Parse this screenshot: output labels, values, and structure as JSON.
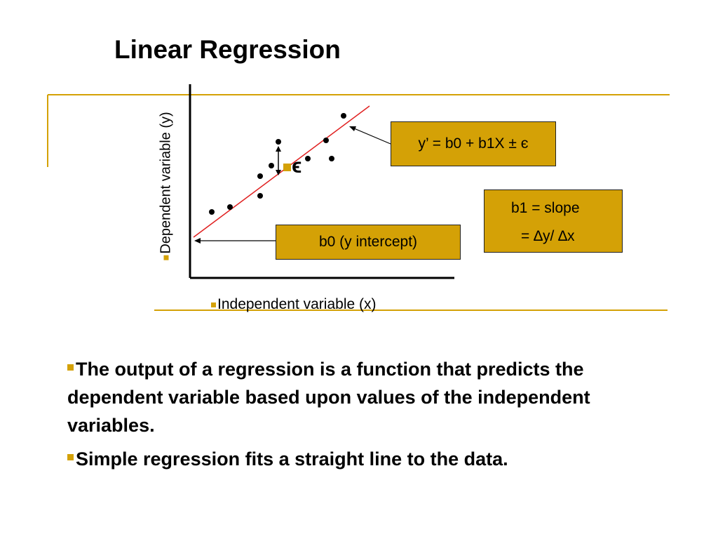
{
  "slide": {
    "title": "Linear Regression",
    "accent_color": "#d4a106",
    "bullets": [
      "The output of a regression is a function that predicts the dependent variable based upon values of the independent variables.",
      "Simple regression fits a straight line to the data."
    ]
  },
  "diagram": {
    "y_axis_label": "Dependent variable (y)",
    "x_axis_label": "Independent variable (x)",
    "error_symbol": "ϵ",
    "equation_label": "y’ = b0 + b1X ± є",
    "intercept_label": "b0 (y intercept)",
    "slope_label_line1": "b1 = slope",
    "slope_label_line2": "= ∆y/ ∆x",
    "line_color": "#e02020",
    "box_color": "#d4a106"
  }
}
